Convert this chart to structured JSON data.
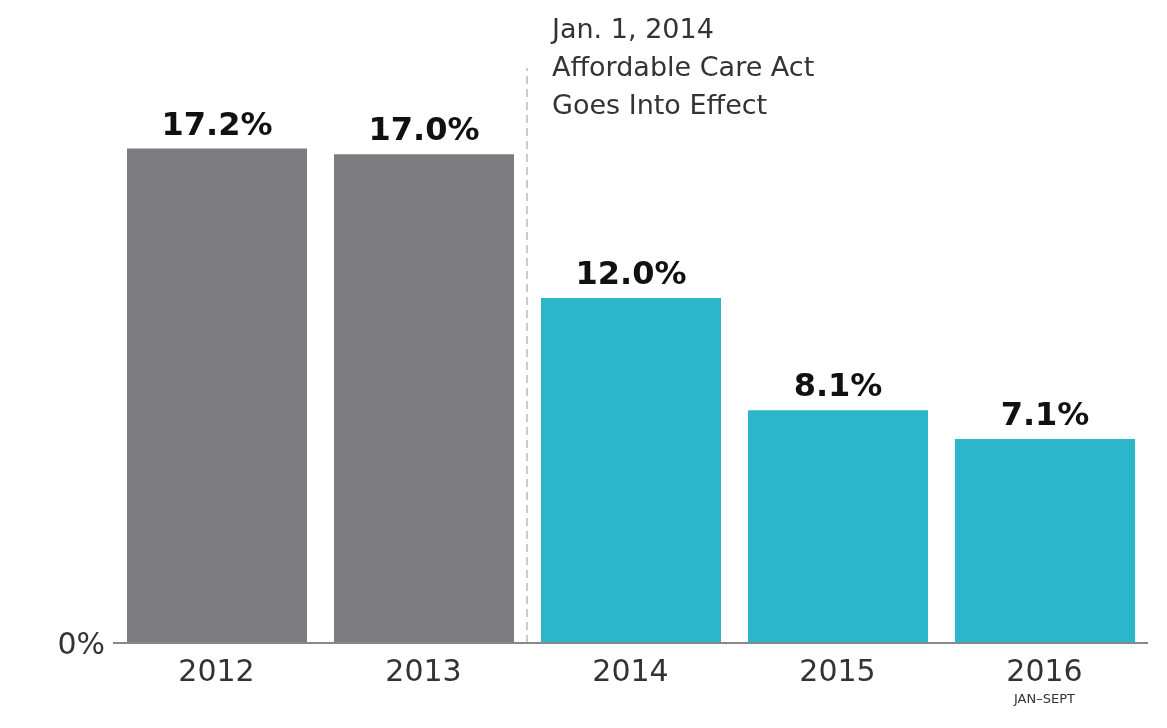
{
  "chart_data": {
    "type": "bar",
    "x": [
      2012,
      2013,
      2014,
      2015,
      2016
    ],
    "xlim": [
      2011.5,
      2016.5
    ],
    "xticks": [
      2012,
      2013,
      2014,
      2015,
      {
        "value": 2016,
        "label": "2016$_{JAN–SEPT}$"
      }
    ],
    "values": [
      17.2,
      17.0,
      12.0,
      8.1,
      7.1
    ],
    "colors": [
      "#7c7c80",
      "#7c7c80",
      "#2bb7c9",
      "#2bb7c9",
      "#2bb7c9"
    ],
    "value_labels": [
      "17.2%",
      "17.0%",
      "12.0%",
      "8.1%",
      "7.1%"
    ],
    "annotations": [
      "0%"
    ],
    "ref_lines": [
      {
        "axis": "x",
        "value": 2013.5,
        "label": "Jan. 1, 2014\nAffordable Care Act\nGoes Into Effect",
        "color": "#bbbbbb",
        "line_style": "dashed"
      }
    ]
  }
}
